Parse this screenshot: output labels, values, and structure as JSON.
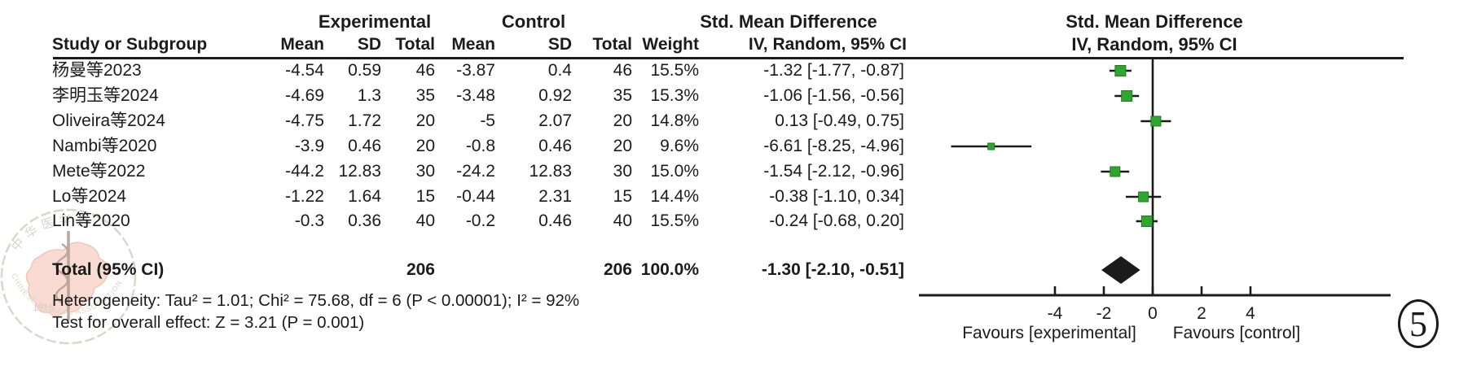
{
  "table": {
    "group_headers": {
      "experimental": "Experimental",
      "control": "Control",
      "smd": "Std. Mean Difference"
    },
    "col_headers": {
      "study": "Study or Subgroup",
      "mean": "Mean",
      "sd": "SD",
      "total": "Total",
      "weight": "Weight",
      "ci": "IV, Random, 95% CI"
    },
    "total_row": {
      "label": "Total (95% CI)",
      "exp_total": "206",
      "ctl_total": "206",
      "weight": "100.0%",
      "ci_label": "-1.30 [-2.10, -0.51]"
    }
  },
  "footer": {
    "heterogeneity": "Heterogeneity: Tau² = 1.01; Chi² = 75.68, df = 6 (P < 0.00001); I² = 92%",
    "overall_effect": "Test for overall effect: Z = 3.21 (P = 0.001)"
  },
  "figure_number": "5",
  "watermark": {
    "org_cn": "中华医学会",
    "org_en": "CHINESE MEDICAL ASSOCIATION",
    "year": "1915"
  },
  "chart_data": {
    "type": "scatter",
    "variant": "forest-plot",
    "title": "Std. Mean Difference",
    "subtitle": "IV, Random, 95% CI",
    "effect_measure": "Std. Mean Difference, IV, Random, 95% CI",
    "x_axis": {
      "ticks": [
        -4,
        -2,
        0,
        2,
        4
      ],
      "range": [
        -9.6,
        9.7
      ],
      "zero_line": 0,
      "label_left": "Favours [experimental]",
      "label_right": "Favours [control]"
    },
    "marker_color": "#2FA72F",
    "diamond_color": "#1b1b1b",
    "studies": [
      {
        "name": "杨曼等2023",
        "exp_mean": "-4.54",
        "exp_sd": "0.59",
        "exp_total": "46",
        "ctl_mean": "-3.87",
        "ctl_sd": "0.4",
        "ctl_total": "46",
        "weight": "15.5%",
        "ci_label": "-1.32 [-1.77, -0.87]",
        "smd": -1.32,
        "ci_low": -1.77,
        "ci_high": -0.87,
        "weight_pct": 15.5
      },
      {
        "name": "李明玉等2024",
        "exp_mean": "-4.69",
        "exp_sd": "1.3",
        "exp_total": "35",
        "ctl_mean": "-3.48",
        "ctl_sd": "0.92",
        "ctl_total": "35",
        "weight": "15.3%",
        "ci_label": "-1.06 [-1.56, -0.56]",
        "smd": -1.06,
        "ci_low": -1.56,
        "ci_high": -0.56,
        "weight_pct": 15.3
      },
      {
        "name": "Oliveira等2024",
        "exp_mean": "-4.75",
        "exp_sd": "1.72",
        "exp_total": "20",
        "ctl_mean": "-5",
        "ctl_sd": "2.07",
        "ctl_total": "20",
        "weight": "14.8%",
        "ci_label": "0.13 [-0.49, 0.75]",
        "smd": 0.13,
        "ci_low": -0.49,
        "ci_high": 0.75,
        "weight_pct": 14.8
      },
      {
        "name": "Nambi等2020",
        "exp_mean": "-3.9",
        "exp_sd": "0.46",
        "exp_total": "20",
        "ctl_mean": "-0.8",
        "ctl_sd": "0.46",
        "ctl_total": "20",
        "weight": "9.6%",
        "ci_label": "-6.61 [-8.25, -4.96]",
        "smd": -6.61,
        "ci_low": -8.25,
        "ci_high": -4.96,
        "weight_pct": 9.6
      },
      {
        "name": "Mete等2022",
        "exp_mean": "-44.2",
        "exp_sd": "12.83",
        "exp_total": "30",
        "ctl_mean": "-24.2",
        "ctl_sd": "12.83",
        "ctl_total": "30",
        "weight": "15.0%",
        "ci_label": "-1.54 [-2.12, -0.96]",
        "smd": -1.54,
        "ci_low": -2.12,
        "ci_high": -0.96,
        "weight_pct": 15.0
      },
      {
        "name": "Lo等2024",
        "exp_mean": "-1.22",
        "exp_sd": "1.64",
        "exp_total": "15",
        "ctl_mean": "-0.44",
        "ctl_sd": "2.31",
        "ctl_total": "15",
        "weight": "14.4%",
        "ci_label": "-0.38 [-1.10, 0.34]",
        "smd": -0.38,
        "ci_low": -1.1,
        "ci_high": 0.34,
        "weight_pct": 14.4
      },
      {
        "name": "Lin等2020",
        "exp_mean": "-0.3",
        "exp_sd": "0.36",
        "exp_total": "40",
        "ctl_mean": "-0.2",
        "ctl_sd": "0.46",
        "ctl_total": "40",
        "weight": "15.5%",
        "ci_label": "-0.24 [-0.68, 0.20]",
        "smd": -0.24,
        "ci_low": -0.68,
        "ci_high": 0.2,
        "weight_pct": 15.5
      }
    ],
    "total": {
      "label": "Total (95% CI)",
      "smd": -1.3,
      "ci_low": -2.1,
      "ci_high": -0.51
    }
  }
}
